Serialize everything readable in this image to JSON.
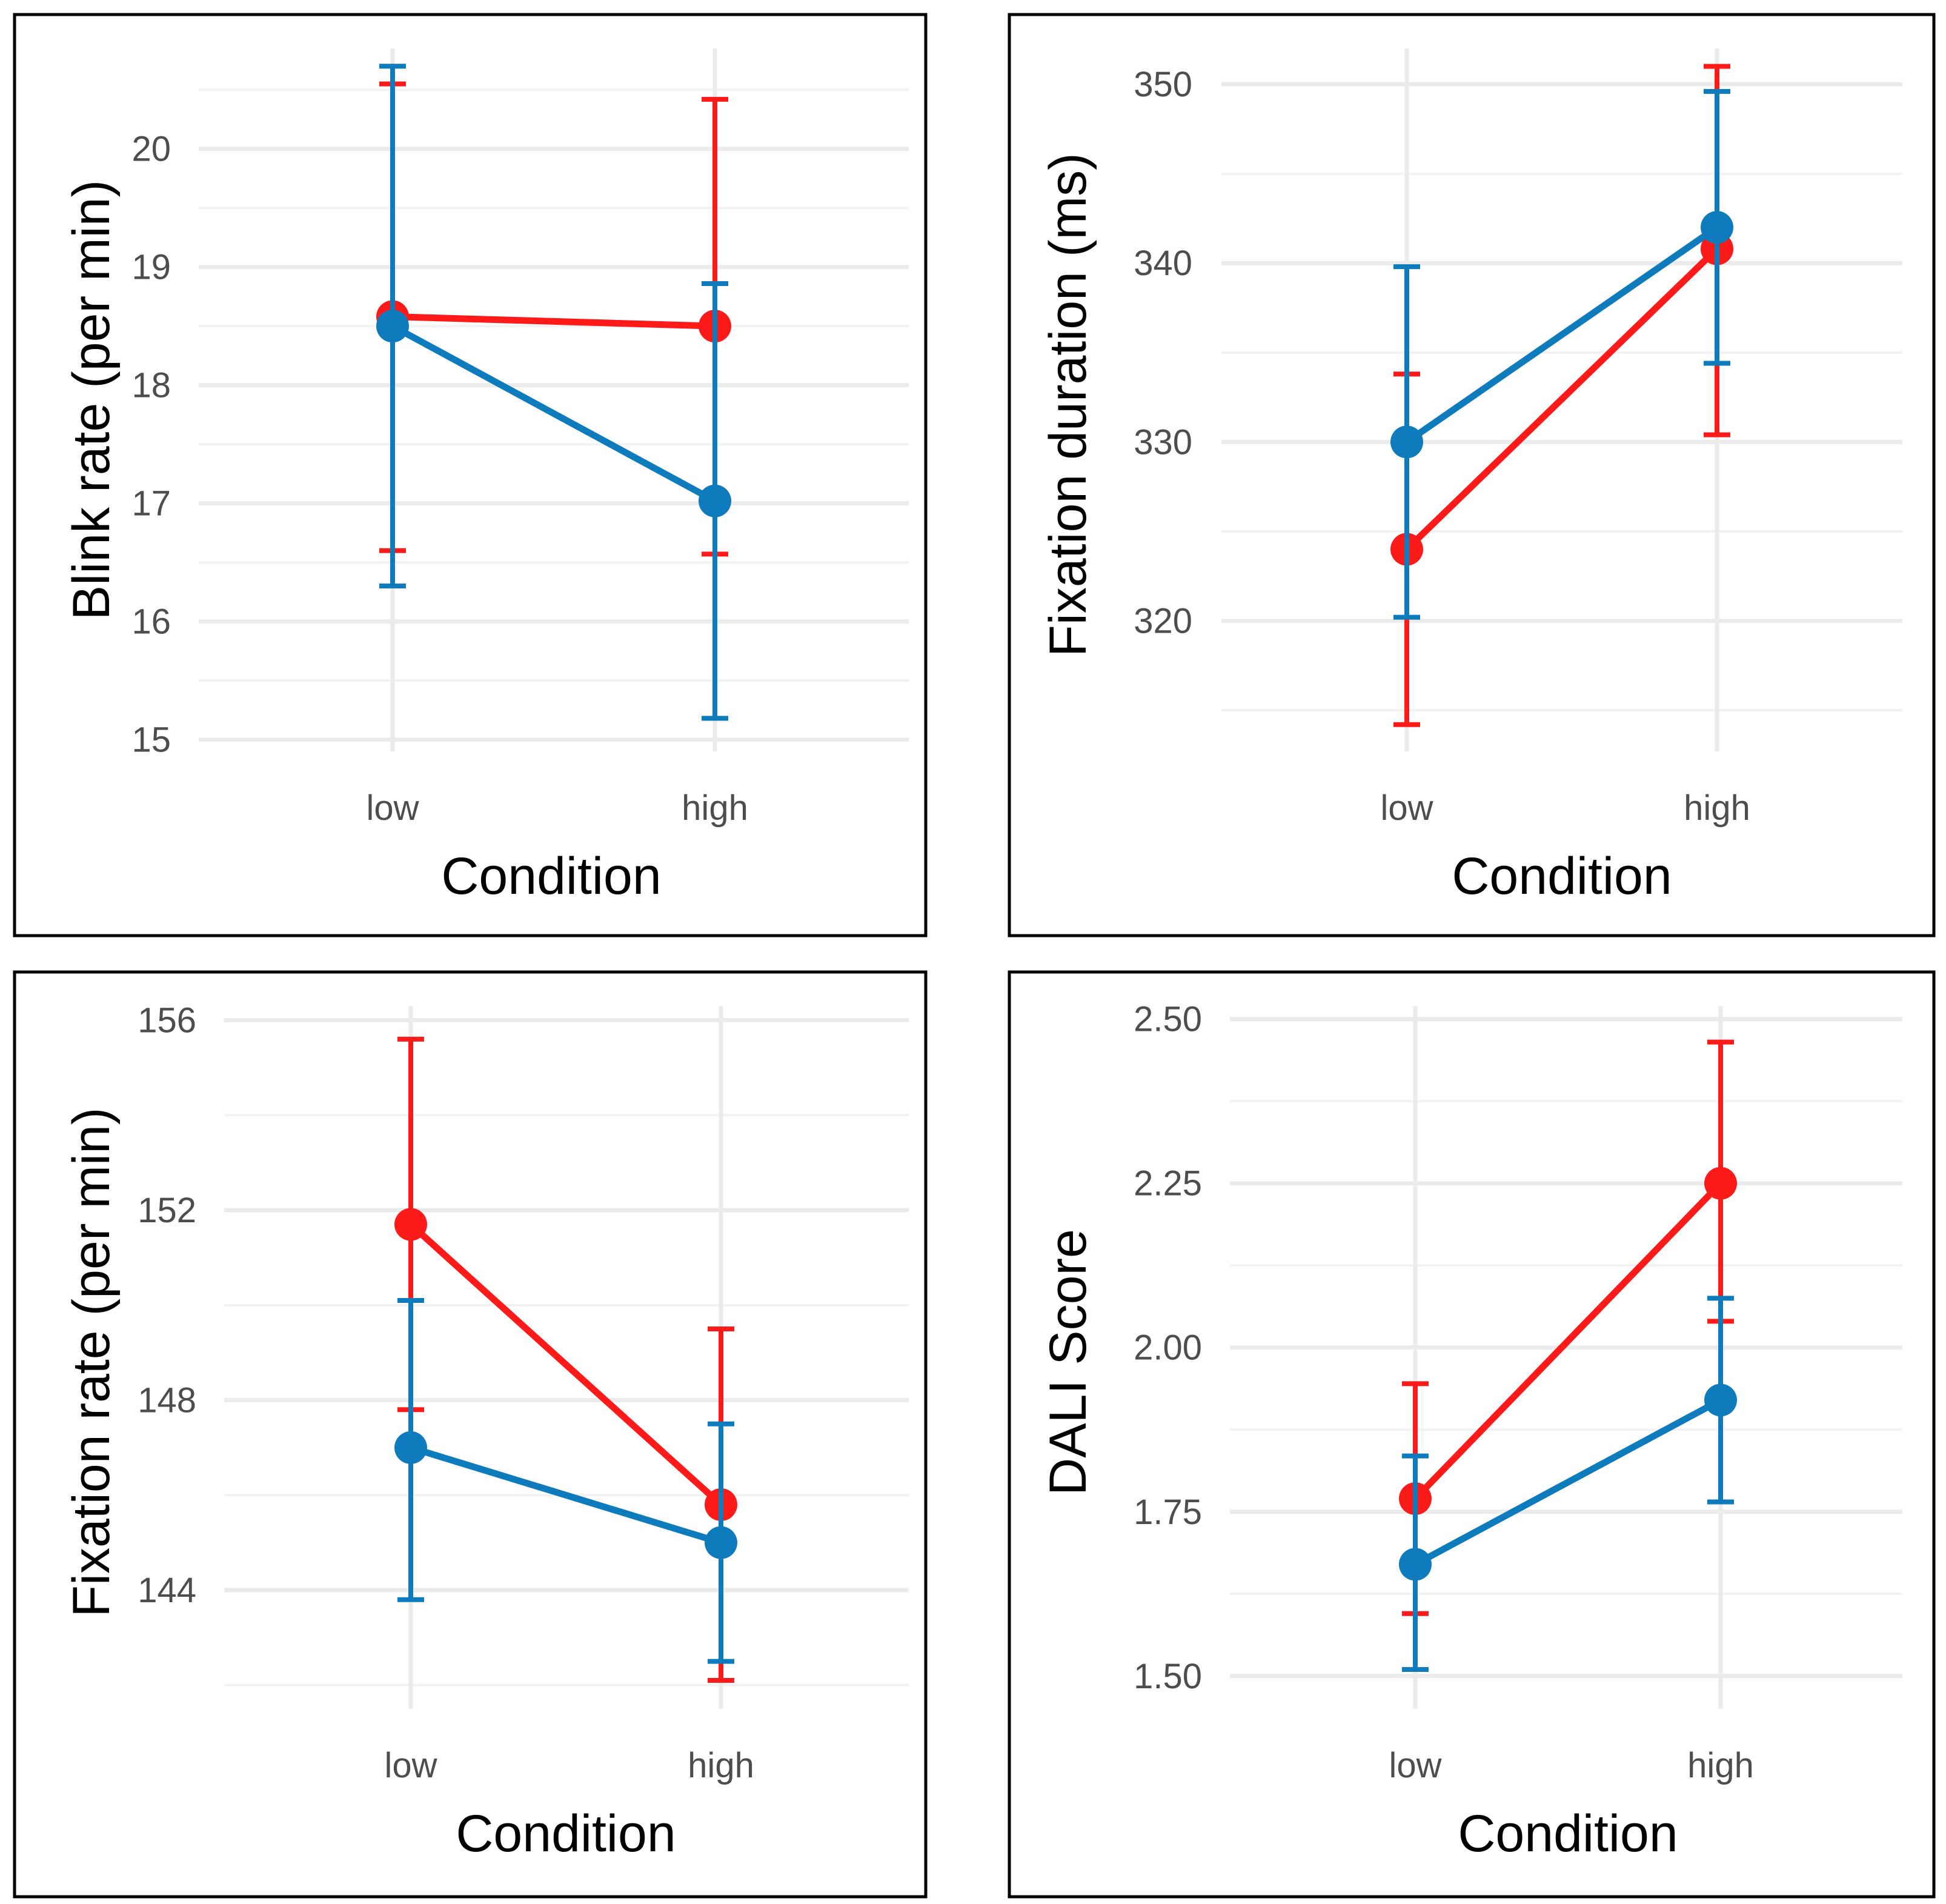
{
  "colors": {
    "series_red": "#ff1a1a",
    "series_blue": "#0e7bbd"
  },
  "chart_data": [
    {
      "type": "line",
      "panel": "top-left",
      "title": "",
      "xlabel": "Condition",
      "ylabel": "Blink rate (per min)",
      "categories": [
        "low",
        "high"
      ],
      "ylim": [
        14.9,
        20.85
      ],
      "yticks": [
        15,
        16,
        17,
        18,
        19,
        20
      ],
      "ytick_labels": [
        "15",
        "16",
        "17",
        "18",
        "19",
        "20"
      ],
      "series": [
        {
          "name": "red",
          "color": "#ff1a1a",
          "values": [
            18.58,
            18.5
          ],
          "lower": [
            16.6,
            16.57
          ],
          "upper": [
            20.55,
            20.42
          ]
        },
        {
          "name": "blue",
          "color": "#0e7bbd",
          "values": [
            18.5,
            17.02
          ],
          "lower": [
            16.3,
            15.18
          ],
          "upper": [
            20.7,
            18.86
          ]
        }
      ]
    },
    {
      "type": "line",
      "panel": "top-right",
      "title": "",
      "xlabel": "Condition",
      "ylabel": "Fixation duration (ms)",
      "categories": [
        "low",
        "high"
      ],
      "ylim": [
        312.7,
        352.0
      ],
      "yticks": [
        320,
        330,
        340,
        350
      ],
      "ytick_labels": [
        "320",
        "330",
        "340",
        "350"
      ],
      "series": [
        {
          "name": "red",
          "color": "#ff1a1a",
          "values": [
            324.0,
            340.8
          ],
          "lower": [
            314.2,
            330.4
          ],
          "upper": [
            333.8,
            351.0
          ]
        },
        {
          "name": "blue",
          "color": "#0e7bbd",
          "values": [
            330.0,
            342.0
          ],
          "lower": [
            320.2,
            334.4
          ],
          "upper": [
            339.8,
            349.6
          ]
        }
      ]
    },
    {
      "type": "line",
      "panel": "bottom-left",
      "title": "",
      "xlabel": "Condition",
      "ylabel": "Fixation rate (per min)",
      "categories": [
        "low",
        "high"
      ],
      "ylim": [
        141.5,
        156.3
      ],
      "yticks": [
        144,
        148,
        152,
        156
      ],
      "ytick_labels": [
        "144",
        "148",
        "152",
        "156"
      ],
      "series": [
        {
          "name": "red",
          "color": "#ff1a1a",
          "values": [
            151.7,
            145.8
          ],
          "lower": [
            147.8,
            142.1
          ],
          "upper": [
            155.6,
            149.5
          ]
        },
        {
          "name": "blue",
          "color": "#0e7bbd",
          "values": [
            147.0,
            145.0
          ],
          "lower": [
            143.8,
            142.5
          ],
          "upper": [
            150.1,
            147.5
          ]
        }
      ]
    },
    {
      "type": "line",
      "panel": "bottom-right",
      "title": "",
      "xlabel": "Condition",
      "ylabel": "DALI Score",
      "categories": [
        "low",
        "high"
      ],
      "ylim": [
        1.45,
        2.52
      ],
      "yticks": [
        1.5,
        1.75,
        2.0,
        2.25,
        2.5
      ],
      "ytick_labels": [
        "1.50",
        "1.75",
        "2.00",
        "2.25",
        "2.50"
      ],
      "series": [
        {
          "name": "red",
          "color": "#ff1a1a",
          "values": [
            1.77,
            2.25
          ],
          "lower": [
            1.595,
            2.04
          ],
          "upper": [
            1.945,
            2.465
          ]
        },
        {
          "name": "blue",
          "color": "#0e7bbd",
          "values": [
            1.67,
            1.92
          ],
          "lower": [
            1.51,
            1.765
          ],
          "upper": [
            1.835,
            2.075
          ]
        }
      ]
    }
  ]
}
